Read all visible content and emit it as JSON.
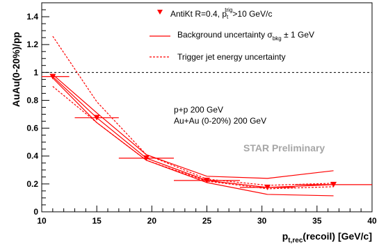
{
  "chart_data": {
    "type": "scatter",
    "xlabel": {
      "main": "p",
      "sub": "t,rec",
      "rest": "(recoil) [GeV/c]"
    },
    "ylabel": "AuAu(0-20%)/pp",
    "xlim": [
      10,
      40
    ],
    "ylim": [
      0,
      1.5
    ],
    "x_ticks": [
      10,
      15,
      20,
      25,
      30,
      35,
      40
    ],
    "y_ticks": [
      0,
      0.2,
      0.4,
      0.6,
      0.8,
      1,
      1.2,
      1.4
    ],
    "x_tick_labels": [
      "10",
      "15",
      "20",
      "25",
      "30",
      "35",
      "40"
    ],
    "y_tick_labels": [
      "0",
      "0.2",
      "0.4",
      "0.6",
      "0.8",
      "1",
      "1.2",
      "1.4"
    ],
    "reference_line": {
      "y": 1,
      "style": "dotted"
    },
    "series": [
      {
        "name": "AntiKt R=0.4, p_t^trig>10 GeV/c",
        "color": "#ff0000",
        "marker": "triangle-down",
        "x": [
          11,
          15,
          19.5,
          25,
          30.5,
          36.5
        ],
        "y": [
          0.97,
          0.675,
          0.385,
          0.225,
          0.175,
          0.195
        ],
        "x_low": [
          10,
          13,
          17,
          22,
          28,
          33
        ],
        "x_high": [
          12.5,
          17,
          22,
          28,
          33,
          40
        ]
      }
    ],
    "bands": [
      {
        "name": "Background uncertainty σ_bkg ± 1 GeV",
        "style": "solid",
        "color": "#ff0000",
        "x": [
          11,
          15,
          19.5,
          25,
          30.5,
          36.5
        ],
        "upper": [
          0.985,
          0.71,
          0.41,
          0.255,
          0.24,
          0.295
        ],
        "lower": [
          0.96,
          0.64,
          0.37,
          0.21,
          0.125,
          0.115
        ]
      },
      {
        "name": "Trigger jet energy uncertainty",
        "style": "dashed",
        "color": "#ff0000",
        "x": [
          11,
          15,
          19.5,
          25,
          30.5,
          36.5
        ],
        "upper": [
          1.26,
          0.79,
          0.41,
          0.235,
          0.19,
          0.205
        ],
        "lower": [
          0.9,
          0.64,
          0.37,
          0.22,
          0.165,
          0.18
        ]
      }
    ],
    "legend": {
      "position": "top-right",
      "marker_entry": {
        "main": "AntiKt R=0.4,  p",
        "sub": "t",
        "sup": "trig",
        "rest": ">10 GeV/c"
      },
      "solid_entry": {
        "main": "Background uncertainty σ",
        "sub": "bkg",
        "rest": " ± 1 GeV"
      },
      "dashed_entry": "Trigger jet energy uncertainty"
    },
    "annotations": {
      "line1": "p+p 200 GeV",
      "line2": "Au+Au (0-20%) 200 GeV",
      "preliminary": "STAR Preliminary"
    }
  }
}
